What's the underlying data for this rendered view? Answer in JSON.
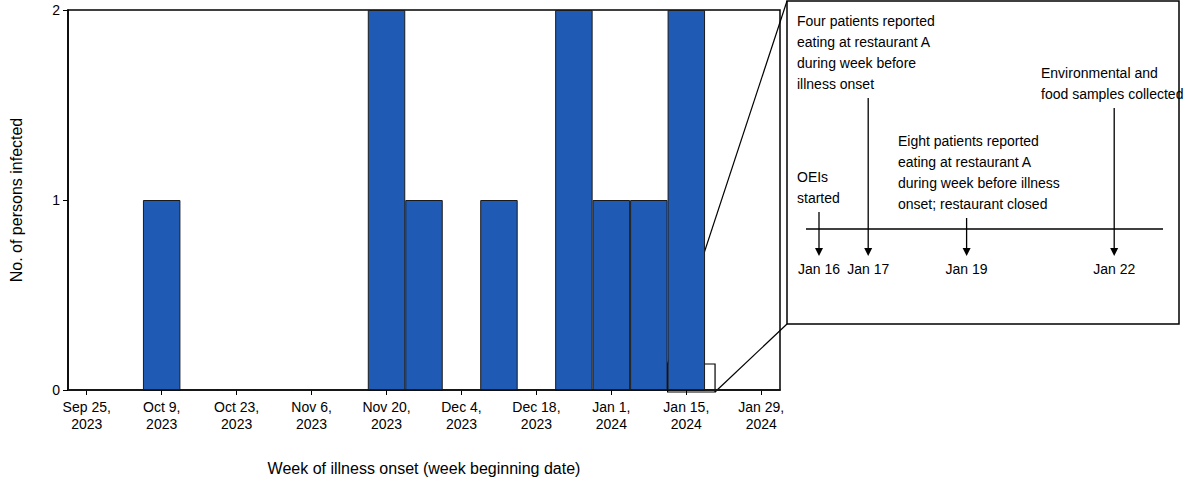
{
  "chart_data": {
    "type": "bar",
    "xlabel": "Week of illness onset (week beginning date)",
    "ylabel": "No. of persons infected",
    "categories": [
      "Sep 25, 2023",
      null,
      "Oct 9, 2023",
      null,
      "Oct 23, 2023",
      null,
      "Nov 6, 2023",
      null,
      "Nov 20, 2023",
      null,
      "Dec 4, 2023",
      null,
      "Dec 18, 2023",
      null,
      "Jan 1, 2024",
      null,
      "Jan 15, 2024",
      null,
      "Jan 29, 2024"
    ],
    "values": [
      0,
      0,
      1,
      0,
      0,
      0,
      0,
      0,
      2,
      1,
      0,
      1,
      0,
      2,
      1,
      1,
      2,
      0,
      0
    ],
    "color": "#1f5bb4",
    "ylim": [
      0,
      2
    ],
    "yticks": [
      0,
      1,
      2
    ],
    "grid": false,
    "annotations": [
      {
        "date": "Jan 16",
        "text": "OEIs\nstarted"
      },
      {
        "date": "Jan 17",
        "text": "Four patients reported\neating at restaurant A\nduring week before\nillness onset"
      },
      {
        "date": "Jan 19",
        "text": "Eight patients reported\neating at restaurant A\nduring week before illness\nonset; restaurant closed"
      },
      {
        "date": "Jan 22",
        "text": "Environmental and\nfood samples collected"
      }
    ]
  }
}
